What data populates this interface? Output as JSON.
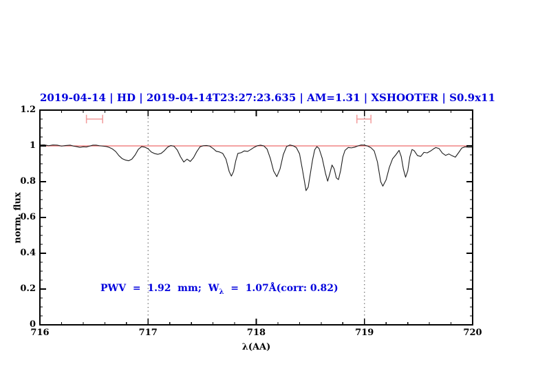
{
  "figure": {
    "title": "2019-04-14 | HD | 2019-04-14T23:27:23.635 | AM=1.31 | XSHOOTER | S0.9x11",
    "annotation": {
      "prefix": "PWV  =  1.92  mm;  W",
      "sub": "λ",
      "suffix": "  =  1.07Å(corr: 0.82)"
    },
    "colors": {
      "text_blue": "#0000dd",
      "reference_red": "#ee6a6a",
      "marker_red": "#f29b9b",
      "spectrum_black": "#1c1c1c",
      "dotted_gray": "#555555",
      "frame_black": "#000000"
    }
  },
  "chart_data": {
    "type": "line",
    "title": "2019-04-14 | HD | 2019-04-14T23:27:23.635 | AM=1.31 | XSHOOTER | S0.9x11",
    "xlabel": "λ(AA)",
    "ylabel": "norm. flux",
    "xlim": [
      716,
      720
    ],
    "ylim": [
      0,
      1.2
    ],
    "grid": "off",
    "legend": "none",
    "x_ticks": {
      "major": [
        716,
        717,
        718,
        719,
        720
      ],
      "labels": [
        "716",
        "717",
        "718",
        "719",
        "720"
      ],
      "minor_step": 0.2
    },
    "y_ticks": {
      "major": [
        0,
        0.2,
        0.4,
        0.6,
        0.8,
        1.0,
        1.2
      ],
      "labels": [
        "0",
        "0.2",
        "0.4",
        "0.6",
        "0.8",
        "1",
        "1.2"
      ],
      "minor_step": 0.05
    },
    "reference_line_y": 1.0,
    "dotted_vlines_x": [
      717,
      719
    ],
    "range_markers": [
      {
        "x_min": 716.43,
        "x_max": 716.58,
        "y": 1.15,
        "cap_half_height": 0.024
      },
      {
        "x_min": 718.93,
        "x_max": 719.06,
        "y": 1.15,
        "cap_half_height": 0.024
      }
    ],
    "series": [
      {
        "name": "normalized spectrum",
        "points": [
          [
            716.0,
            1.005
          ],
          [
            716.04,
            1.006
          ],
          [
            716.08,
            1.001
          ],
          [
            716.12,
            1.005
          ],
          [
            716.16,
            1.004
          ],
          [
            716.2,
            0.999
          ],
          [
            716.24,
            1.002
          ],
          [
            716.28,
            1.004
          ],
          [
            716.31,
            0.999
          ],
          [
            716.34,
            0.996
          ],
          [
            716.37,
            0.992
          ],
          [
            716.4,
            0.995
          ],
          [
            716.43,
            0.994
          ],
          [
            716.46,
            0.999
          ],
          [
            716.49,
            1.004
          ],
          [
            716.52,
            1.004
          ],
          [
            716.55,
            1.001
          ],
          [
            716.58,
            0.999
          ],
          [
            716.61,
            0.997
          ],
          [
            716.64,
            0.992
          ],
          [
            716.67,
            0.983
          ],
          [
            716.7,
            0.969
          ],
          [
            716.73,
            0.946
          ],
          [
            716.76,
            0.929
          ],
          [
            716.79,
            0.921
          ],
          [
            716.82,
            0.917
          ],
          [
            716.85,
            0.926
          ],
          [
            716.88,
            0.949
          ],
          [
            716.91,
            0.981
          ],
          [
            716.94,
            0.996
          ],
          [
            716.97,
            0.993
          ],
          [
            717.0,
            0.984
          ],
          [
            717.03,
            0.966
          ],
          [
            717.06,
            0.957
          ],
          [
            717.09,
            0.953
          ],
          [
            717.12,
            0.958
          ],
          [
            717.15,
            0.973
          ],
          [
            717.18,
            0.993
          ],
          [
            717.21,
            1.002
          ],
          [
            717.24,
            0.998
          ],
          [
            717.27,
            0.977
          ],
          [
            717.3,
            0.939
          ],
          [
            717.33,
            0.91
          ],
          [
            717.36,
            0.926
          ],
          [
            717.39,
            0.913
          ],
          [
            717.42,
            0.934
          ],
          [
            717.45,
            0.968
          ],
          [
            717.48,
            0.995
          ],
          [
            717.51,
            1.001
          ],
          [
            717.54,
            1.002
          ],
          [
            717.57,
            0.999
          ],
          [
            717.6,
            0.986
          ],
          [
            717.63,
            0.97
          ],
          [
            717.66,
            0.966
          ],
          [
            717.69,
            0.958
          ],
          [
            717.72,
            0.926
          ],
          [
            717.75,
            0.856
          ],
          [
            717.77,
            0.831
          ],
          [
            717.79,
            0.857
          ],
          [
            717.81,
            0.916
          ],
          [
            717.83,
            0.958
          ],
          [
            717.86,
            0.962
          ],
          [
            717.89,
            0.972
          ],
          [
            717.92,
            0.969
          ],
          [
            717.95,
            0.98
          ],
          [
            717.98,
            0.992
          ],
          [
            718.01,
            1.001
          ],
          [
            718.04,
            1.004
          ],
          [
            718.07,
            1.0
          ],
          [
            718.1,
            0.982
          ],
          [
            718.13,
            0.93
          ],
          [
            718.16,
            0.86
          ],
          [
            718.19,
            0.828
          ],
          [
            718.22,
            0.872
          ],
          [
            718.25,
            0.952
          ],
          [
            718.28,
            0.996
          ],
          [
            718.31,
            1.005
          ],
          [
            718.34,
            1.001
          ],
          [
            718.37,
            0.991
          ],
          [
            718.4,
            0.956
          ],
          [
            718.43,
            0.856
          ],
          [
            718.46,
            0.75
          ],
          [
            718.48,
            0.77
          ],
          [
            718.5,
            0.846
          ],
          [
            718.52,
            0.921
          ],
          [
            718.54,
            0.978
          ],
          [
            718.56,
            0.996
          ],
          [
            718.58,
            0.986
          ],
          [
            718.61,
            0.93
          ],
          [
            718.64,
            0.846
          ],
          [
            718.66,
            0.803
          ],
          [
            718.68,
            0.846
          ],
          [
            718.7,
            0.893
          ],
          [
            718.72,
            0.872
          ],
          [
            718.74,
            0.821
          ],
          [
            718.76,
            0.812
          ],
          [
            718.78,
            0.863
          ],
          [
            718.8,
            0.938
          ],
          [
            718.82,
            0.975
          ],
          [
            718.85,
            0.991
          ],
          [
            718.88,
            0.989
          ],
          [
            718.91,
            0.993
          ],
          [
            718.94,
            1.0
          ],
          [
            718.97,
            1.005
          ],
          [
            719.0,
            1.004
          ],
          [
            719.03,
            0.999
          ],
          [
            719.06,
            0.99
          ],
          [
            719.09,
            0.972
          ],
          [
            719.12,
            0.91
          ],
          [
            719.15,
            0.8
          ],
          [
            719.17,
            0.775
          ],
          [
            719.2,
            0.81
          ],
          [
            719.23,
            0.88
          ],
          [
            719.26,
            0.928
          ],
          [
            719.29,
            0.95
          ],
          [
            719.32,
            0.975
          ],
          [
            719.34,
            0.94
          ],
          [
            719.36,
            0.87
          ],
          [
            719.38,
            0.825
          ],
          [
            719.4,
            0.86
          ],
          [
            719.42,
            0.94
          ],
          [
            719.44,
            0.98
          ],
          [
            719.46,
            0.973
          ],
          [
            719.49,
            0.946
          ],
          [
            719.52,
            0.941
          ],
          [
            719.55,
            0.964
          ],
          [
            719.58,
            0.961
          ],
          [
            719.61,
            0.971
          ],
          [
            719.64,
            0.984
          ],
          [
            719.66,
            0.991
          ],
          [
            719.69,
            0.985
          ],
          [
            719.72,
            0.96
          ],
          [
            719.75,
            0.947
          ],
          [
            719.78,
            0.955
          ],
          [
            719.81,
            0.945
          ],
          [
            719.84,
            0.937
          ],
          [
            719.87,
            0.962
          ],
          [
            719.9,
            0.988
          ],
          [
            719.93,
            0.995
          ],
          [
            719.96,
            0.992
          ],
          [
            720.0,
            0.993
          ]
        ]
      }
    ]
  }
}
